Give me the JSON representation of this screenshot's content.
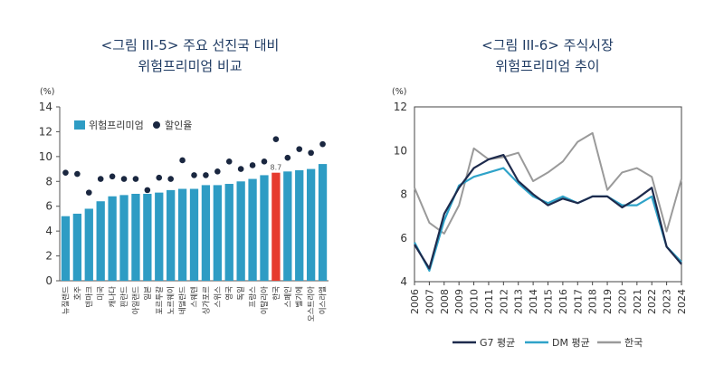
{
  "chart_data": [
    {
      "type": "bar",
      "title_line1": "<그림 III-5> 주요 선진국 대비",
      "title_line2": "위험프리미엄 비교",
      "unit": "(%)",
      "ylim": [
        0,
        14
      ],
      "yticks": [
        0,
        2,
        4,
        6,
        8,
        10,
        12,
        14
      ],
      "categories": [
        "뉴질랜드",
        "호주",
        "덴마크",
        "미국",
        "캐나다",
        "핀란드",
        "아일랜드",
        "일본",
        "포르투갈",
        "노르웨이",
        "네덜란드",
        "스웨덴",
        "싱가포르",
        "스위스",
        "영국",
        "독일",
        "프랑스",
        "이탈리아",
        "한국",
        "스페인",
        "벨기에",
        "오스트리아",
        "이스라엘"
      ],
      "highlight_category": "한국",
      "highlight_label": "8.7",
      "series": [
        {
          "name": "위험프리미엄",
          "kind": "bar",
          "color": "#2e9cc4",
          "highlight_color": "#e63b2e",
          "values": [
            5.2,
            5.4,
            5.8,
            6.4,
            6.8,
            6.9,
            7.0,
            7.0,
            7.1,
            7.3,
            7.4,
            7.4,
            7.7,
            7.7,
            7.8,
            8.0,
            8.2,
            8.5,
            8.7,
            8.8,
            8.9,
            9.0,
            9.4
          ]
        },
        {
          "name": "할인율",
          "kind": "dot",
          "color": "#1a2740",
          "values": [
            8.7,
            8.6,
            7.1,
            8.2,
            8.4,
            8.2,
            8.2,
            7.3,
            8.3,
            8.2,
            9.7,
            8.5,
            8.5,
            8.8,
            9.6,
            9.0,
            9.3,
            9.6,
            11.4,
            9.9,
            10.6,
            10.3,
            11.0
          ]
        }
      ]
    },
    {
      "type": "line",
      "title_line1": "<그림 III-6> 주식시장",
      "title_line2": "위험프리미엄 추이",
      "unit": "(%)",
      "ylim": [
        4,
        12
      ],
      "yticks": [
        4,
        6,
        8,
        10,
        12
      ],
      "x": [
        "2006",
        "2007",
        "2008",
        "2009",
        "2010",
        "2011",
        "2012",
        "2013",
        "2014",
        "2015",
        "2016",
        "2017",
        "2018",
        "2019",
        "2020",
        "2021",
        "2022",
        "2023",
        "2024"
      ],
      "series": [
        {
          "name": "G7 평균",
          "color": "#1e2b4d",
          "values": [
            5.7,
            4.6,
            7.1,
            8.3,
            9.2,
            9.6,
            9.8,
            8.6,
            8.0,
            7.5,
            7.8,
            7.6,
            7.9,
            7.9,
            7.4,
            7.8,
            8.3,
            5.6,
            4.8
          ]
        },
        {
          "name": "DM 평균",
          "color": "#2fa3c9",
          "values": [
            5.8,
            4.5,
            6.8,
            8.4,
            8.8,
            9.0,
            9.2,
            8.5,
            7.9,
            7.6,
            7.9,
            7.6,
            7.9,
            7.9,
            7.5,
            7.5,
            7.9,
            5.6,
            4.9
          ]
        },
        {
          "name": "한국",
          "color": "#9a9a9a",
          "values": [
            8.3,
            6.7,
            6.2,
            7.5,
            10.1,
            9.6,
            9.7,
            9.9,
            8.6,
            9.0,
            9.5,
            10.4,
            10.8,
            8.2,
            9.0,
            9.2,
            8.8,
            6.3,
            8.7
          ]
        }
      ]
    }
  ]
}
